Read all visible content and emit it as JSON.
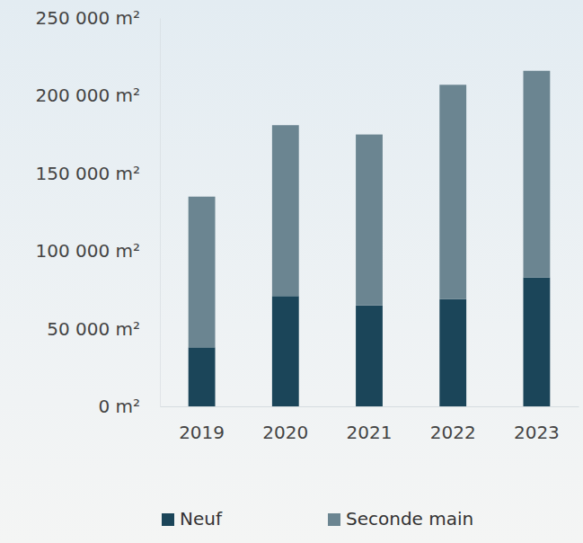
{
  "chart_data": {
    "type": "bar",
    "stacked": true,
    "categories": [
      "2019",
      "2020",
      "2021",
      "2022",
      "2023"
    ],
    "series": [
      {
        "name": "Neuf",
        "color": "#1b4559",
        "values": [
          38000,
          71000,
          65000,
          69000,
          83000
        ]
      },
      {
        "name": "Seconde main",
        "color": "#6b8591",
        "values": [
          97000,
          110000,
          110000,
          138000,
          133000
        ]
      }
    ],
    "ylim": [
      0,
      250000
    ],
    "yticks": [
      {
        "value": 0,
        "label": "0 m²"
      },
      {
        "value": 50000,
        "label": "50 000 m²"
      },
      {
        "value": 100000,
        "label": "100 000 m²"
      },
      {
        "value": 150000,
        "label": "150 000 m²"
      },
      {
        "value": 200000,
        "label": "200 000 m²"
      },
      {
        "value": 250000,
        "label": "250 000 m²"
      }
    ],
    "grid": false,
    "legend": "bottom"
  }
}
